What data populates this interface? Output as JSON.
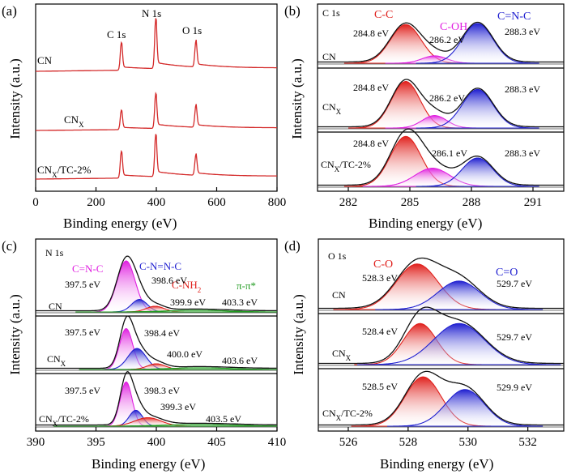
{
  "figure": {
    "panel_labels": [
      "(a)",
      "(b)",
      "(c)",
      "(d)"
    ]
  },
  "chart_data": [
    {
      "panel": "(a)",
      "type": "line",
      "xlabel": "Binding energy (eV)",
      "ylabel": "Intensity (a.u.)",
      "xlim": [
        0,
        800
      ],
      "xticks": [
        0,
        200,
        400,
        600,
        800
      ],
      "series": [
        {
          "name": "CN",
          "peaks": [
            {
              "x": 284,
              "height": 0.55
            },
            {
              "x": 398,
              "height": 1.0
            },
            {
              "x": 531,
              "height": 0.5
            }
          ]
        },
        {
          "name": "CNX",
          "peaks": [
            {
              "x": 284,
              "height": 0.5
            },
            {
              "x": 398,
              "height": 0.9
            },
            {
              "x": 531,
              "height": 0.55
            }
          ]
        },
        {
          "name": "CNX/TC-2%",
          "peaks": [
            {
              "x": 284,
              "height": 0.6
            },
            {
              "x": 398,
              "height": 0.95
            },
            {
              "x": 531,
              "height": 0.45
            }
          ]
        }
      ],
      "sample_labels": [
        "CN",
        "CNX",
        "CNX/TC-2%"
      ],
      "annotations": [
        "C 1s",
        "N 1s",
        "O 1s"
      ],
      "color": "#d42a2a"
    },
    {
      "panel": "(b)",
      "type": "area",
      "title": "C 1s",
      "xlabel": "Binding energy (eV)",
      "ylabel": "Intensity (a.u.)",
      "xlim": [
        280.5,
        292.5
      ],
      "xticks": [
        282,
        285,
        288,
        291
      ],
      "legend": [
        {
          "label": "C-C",
          "color": "#e0201c"
        },
        {
          "label": "C-OH",
          "color": "#e020e0"
        },
        {
          "label": "C=N-C",
          "color": "#2020d0"
        }
      ],
      "samples": [
        {
          "name": "CN",
          "peaks": [
            {
              "label": "284.8 eV",
              "center": 284.8,
              "height": 0.68,
              "width": 0.75,
              "color": "#e0201c"
            },
            {
              "label": "286.2 eV",
              "center": 286.2,
              "height": 0.13,
              "width": 0.6,
              "color": "#e020e0"
            },
            {
              "label": "288.3 eV",
              "center": 288.3,
              "height": 0.7,
              "width": 0.75,
              "color": "#2020d0"
            }
          ]
        },
        {
          "name": "CNX",
          "peaks": [
            {
              "label": "284.8 eV",
              "center": 284.8,
              "height": 0.82,
              "width": 0.7,
              "color": "#e0201c"
            },
            {
              "label": "286.2 eV",
              "center": 286.2,
              "height": 0.22,
              "width": 0.6,
              "color": "#e020e0"
            },
            {
              "label": "288.3 eV",
              "center": 288.3,
              "height": 0.68,
              "width": 0.75,
              "color": "#2020d0"
            }
          ]
        },
        {
          "name": "CNX/TC-2%",
          "peaks": [
            {
              "label": "284.8 eV",
              "center": 284.8,
              "height": 0.88,
              "width": 0.75,
              "color": "#e0201c"
            },
            {
              "label": "286.1 eV",
              "center": 286.1,
              "height": 0.32,
              "width": 0.85,
              "color": "#e020e0"
            },
            {
              "label": "288.3 eV",
              "center": 288.3,
              "height": 0.5,
              "width": 0.75,
              "color": "#2020d0"
            }
          ]
        }
      ],
      "sample_labels": [
        "CN",
        "CNX",
        "CNX/TC-2%"
      ]
    },
    {
      "panel": "(c)",
      "type": "area",
      "title": "N 1s",
      "xlabel": "Binding energy (eV)",
      "ylabel": "Intensity (a.u.)",
      "xlim": [
        390,
        410
      ],
      "xticks": [
        390,
        395,
        400,
        405,
        410
      ],
      "legend": [
        {
          "label": "C=N-C",
          "color": "#e020e0"
        },
        {
          "label": "C-N=N-C",
          "color": "#2020d0"
        },
        {
          "label": "C-NH2",
          "color": "#e0201c"
        },
        {
          "label": "π-π*",
          "color": "#1d9a1d"
        }
      ],
      "samples": [
        {
          "name": "CN",
          "peaks": [
            {
              "label": "397.5 eV",
              "center": 397.5,
              "height": 0.9,
              "width": 0.75,
              "color": "#e020e0"
            },
            {
              "label": "398.6 eV",
              "center": 398.6,
              "height": 0.22,
              "width": 0.65,
              "color": "#2020d0"
            },
            {
              "label": "399.9 eV",
              "center": 399.9,
              "height": 0.1,
              "width": 0.75,
              "color": "#e0201c"
            },
            {
              "label": "403.3 eV",
              "center": 403.3,
              "height": 0.03,
              "width": 2.5,
              "color": "#1d9a1d"
            }
          ]
        },
        {
          "name": "CNX",
          "peaks": [
            {
              "label": "397.5 eV",
              "center": 397.5,
              "height": 0.72,
              "width": 0.55,
              "color": "#e020e0"
            },
            {
              "label": "398.4 eV",
              "center": 398.4,
              "height": 0.37,
              "width": 0.75,
              "color": "#2020d0"
            },
            {
              "label": "400.0 eV",
              "center": 400.0,
              "height": 0.1,
              "width": 0.75,
              "color": "#e0201c"
            },
            {
              "label": "403.6 eV",
              "center": 403.6,
              "height": 0.03,
              "width": 2.5,
              "color": "#1d9a1d"
            }
          ]
        },
        {
          "name": "CNX/TC-2%",
          "peaks": [
            {
              "label": "397.5 eV",
              "center": 397.5,
              "height": 0.78,
              "width": 0.5,
              "color": "#e020e0"
            },
            {
              "label": "398.3 eV",
              "center": 398.3,
              "height": 0.28,
              "width": 0.55,
              "color": "#2020d0"
            },
            {
              "label": "399.3 eV",
              "center": 399.3,
              "height": 0.15,
              "width": 1.1,
              "color": "#e0201c"
            },
            {
              "label": "403.5 eV",
              "center": 403.5,
              "height": 0.03,
              "width": 3.0,
              "color": "#1d9a1d"
            }
          ]
        }
      ],
      "sample_labels": [
        "CN",
        "CNX",
        "CNX/TC-2%"
      ]
    },
    {
      "panel": "(d)",
      "type": "area",
      "title": "O 1s",
      "xlabel": "Binding energy (eV)",
      "ylabel": "Intensity (a.u.)",
      "xlim": [
        525,
        533.2
      ],
      "xticks": [
        526,
        528,
        530,
        532
      ],
      "legend": [
        {
          "label": "C-O",
          "color": "#e0201c"
        },
        {
          "label": "C=O",
          "color": "#2020d0"
        }
      ],
      "samples": [
        {
          "name": "CN",
          "peaks": [
            {
              "label": "528.3 eV",
              "center": 528.3,
              "height": 0.72,
              "width": 0.7,
              "color": "#e0201c"
            },
            {
              "label": "529.7 eV",
              "center": 529.7,
              "height": 0.45,
              "width": 0.7,
              "color": "#2020d0"
            }
          ]
        },
        {
          "name": "CNX",
          "peaks": [
            {
              "label": "528.4 eV",
              "center": 528.4,
              "height": 0.65,
              "width": 0.55,
              "color": "#e0201c"
            },
            {
              "label": "529.7 eV",
              "center": 529.7,
              "height": 0.65,
              "width": 0.85,
              "color": "#2020d0"
            }
          ]
        },
        {
          "name": "CNX/TC-2%",
          "peaks": [
            {
              "label": "528.5 eV",
              "center": 528.5,
              "height": 0.78,
              "width": 0.6,
              "color": "#e0201c"
            },
            {
              "label": "529.9 eV",
              "center": 529.9,
              "height": 0.58,
              "width": 0.65,
              "color": "#2020d0"
            }
          ]
        }
      ],
      "sample_labels": [
        "CN",
        "CNX",
        "CNX/TC-2%"
      ]
    }
  ]
}
